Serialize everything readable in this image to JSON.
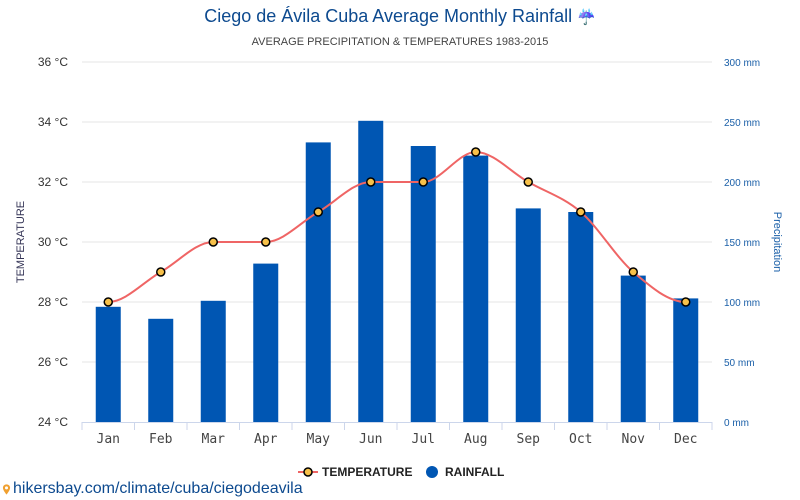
{
  "header": {
    "title": "Ciego de Ávila Cuba Average Monthly Rainfall",
    "title_icon": "umbrella-rain-icon",
    "subtitle": "AVERAGE PRECIPITATION & TEMPERATURES 1983-2015"
  },
  "source": {
    "icon": "location-pin-icon",
    "text": "hikersbay.com/climate/cuba/ciegodeavila"
  },
  "chart_data": {
    "type": "bar",
    "title": "Ciego de Ávila Cuba Average Monthly Rainfall",
    "subtitle": "AVERAGE PRECIPITATION & TEMPERATURES 1983-2015",
    "categories": [
      "Jan",
      "Feb",
      "Mar",
      "Apr",
      "May",
      "Jun",
      "Jul",
      "Aug",
      "Sep",
      "Oct",
      "Nov",
      "Dec"
    ],
    "series": [
      {
        "name": "RAINFALL",
        "type": "bar",
        "axis": "right",
        "color": "#0056b3",
        "values": [
          96,
          86,
          101,
          132,
          233,
          251,
          230,
          222,
          178,
          175,
          122,
          103
        ]
      },
      {
        "name": "TEMPERATURE",
        "type": "line",
        "axis": "left",
        "color": "#ef6565",
        "marker_fill": "#f7c14a",
        "values": [
          28,
          29,
          30,
          30,
          31,
          32,
          32,
          33,
          32,
          31,
          29,
          28
        ]
      }
    ],
    "left_axis": {
      "label": "TEMPERATURE",
      "ticks": [
        "24 °C",
        "26 °C",
        "28 °C",
        "30 °C",
        "32 °C",
        "34 °C",
        "36 °C"
      ],
      "range": [
        24,
        36
      ]
    },
    "right_axis": {
      "label": "Precipitation",
      "ticks": [
        "0 mm",
        "50 mm",
        "100 mm",
        "150 mm",
        "200 mm",
        "250 mm",
        "300 mm"
      ],
      "range": [
        0,
        300
      ]
    },
    "grid": true,
    "legend": {
      "position": "bottom-center",
      "items": [
        "TEMPERATURE",
        "RAINFALL"
      ]
    }
  }
}
